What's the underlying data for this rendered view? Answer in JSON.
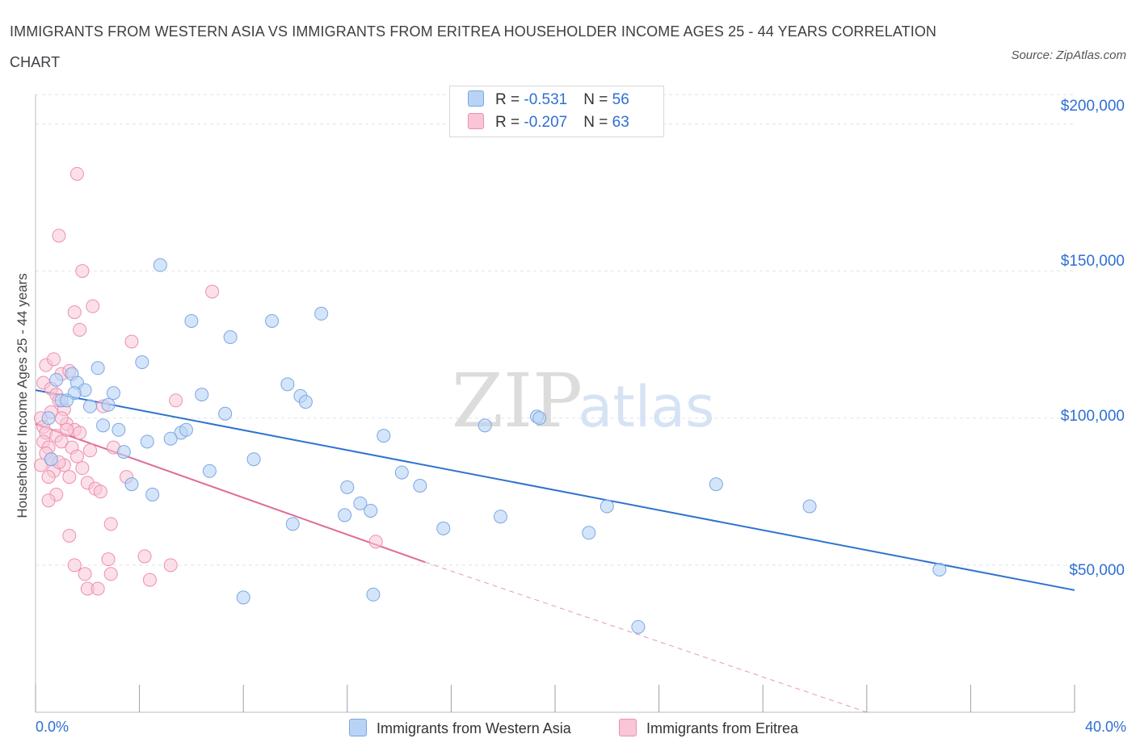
{
  "title": "IMMIGRANTS FROM WESTERN ASIA VS IMMIGRANTS FROM ERITREA HOUSEHOLDER INCOME AGES 25 - 44 YEARS CORRELATION CHART",
  "source": "Source: ZipAtlas.com",
  "watermark": {
    "zip": "ZIP",
    "atlas": "atlas"
  },
  "colors": {
    "blue_fill": "#b9d3f5",
    "blue_stroke": "#7aa7e6",
    "blue_line": "#2f72d0",
    "pink_fill": "#f8c6d6",
    "pink_stroke": "#ee8fb0",
    "pink_line": "#e06a98",
    "accent_text": "#2e6fd3"
  },
  "legend_top": [
    {
      "r_label": "R = ",
      "r_value": "-0.531",
      "n_label": "N = ",
      "n_value": "56"
    },
    {
      "r_label": "R = ",
      "r_value": "-0.207",
      "n_label": "N = ",
      "n_value": "63"
    }
  ],
  "chart_data": {
    "type": "scatter",
    "title": "IMMIGRANTS FROM WESTERN ASIA VS IMMIGRANTS FROM ERITREA HOUSEHOLDER INCOME AGES 25 - 44 YEARS CORRELATION CHART",
    "xlabel": "",
    "ylabel": "Householder Income Ages 25 - 44 years",
    "xlim": [
      0,
      40
    ],
    "ylim": [
      0,
      210000
    ],
    "x_tick_labels": [
      "0.0%",
      "40.0%"
    ],
    "y_ticks": [
      50000,
      100000,
      150000,
      200000
    ],
    "y_tick_labels": [
      "$50,000",
      "$100,000",
      "$150,000",
      "$200,000"
    ],
    "grid": "horizontal dashed",
    "legend": "top-center and bottom",
    "series": [
      {
        "name": "Immigrants from Western Asia",
        "r": -0.531,
        "n": 56,
        "trend": {
          "x0": 0,
          "y0": 109500,
          "x1": 40,
          "y1": 41500
        },
        "points": [
          [
            0.5,
            100000
          ],
          [
            0.8,
            113000
          ],
          [
            1.4,
            115000
          ],
          [
            1.0,
            106000
          ],
          [
            1.6,
            112000
          ],
          [
            1.9,
            109500
          ],
          [
            1.5,
            108500
          ],
          [
            2.4,
            117000
          ],
          [
            3.0,
            108500
          ],
          [
            3.4,
            88500
          ],
          [
            3.7,
            77500
          ],
          [
            2.1,
            104000
          ],
          [
            2.6,
            97500
          ],
          [
            4.1,
            119000
          ],
          [
            4.5,
            74000
          ],
          [
            5.6,
            95000
          ],
          [
            4.8,
            152000
          ],
          [
            6.0,
            133000
          ],
          [
            6.4,
            108000
          ],
          [
            7.3,
            101500
          ],
          [
            7.5,
            127500
          ],
          [
            8.0,
            39000
          ],
          [
            9.1,
            133000
          ],
          [
            9.7,
            111500
          ],
          [
            10.2,
            107500
          ],
          [
            10.4,
            105500
          ],
          [
            11.0,
            135500
          ],
          [
            12.0,
            76500
          ],
          [
            12.5,
            71000
          ],
          [
            12.9,
            68500
          ],
          [
            11.9,
            67000
          ],
          [
            13.4,
            94000
          ],
          [
            14.1,
            81500
          ],
          [
            14.8,
            77000
          ],
          [
            15.7,
            62500
          ],
          [
            17.3,
            97500
          ],
          [
            17.9,
            66500
          ],
          [
            19.3,
            100500
          ],
          [
            19.4,
            100000
          ],
          [
            21.3,
            61000
          ],
          [
            22.0,
            70000
          ],
          [
            23.2,
            29000
          ],
          [
            26.2,
            77500
          ],
          [
            29.8,
            70000
          ],
          [
            34.8,
            48500
          ],
          [
            5.2,
            93000
          ],
          [
            5.8,
            96000
          ],
          [
            6.7,
            82000
          ],
          [
            8.4,
            86000
          ],
          [
            9.9,
            64000
          ],
          [
            13.0,
            40000
          ],
          [
            4.3,
            92000
          ],
          [
            2.8,
            104500
          ],
          [
            3.2,
            96000
          ],
          [
            1.2,
            106000
          ],
          [
            0.6,
            86000
          ]
        ]
      },
      {
        "name": "Immigrants from Eritrea",
        "r": -0.207,
        "n": 63,
        "trend": {
          "x0": 0,
          "y0": 98000,
          "x1": 15,
          "y1": 51000,
          "dash_x1": 32,
          "dash_y1": 0
        },
        "points": [
          [
            0.2,
            100000
          ],
          [
            0.3,
            97000
          ],
          [
            0.4,
            95000
          ],
          [
            0.3,
            92000
          ],
          [
            0.5,
            90000
          ],
          [
            0.4,
            88000
          ],
          [
            0.6,
            86000
          ],
          [
            0.2,
            84000
          ],
          [
            0.7,
            82000
          ],
          [
            0.5,
            80000
          ],
          [
            0.3,
            112000
          ],
          [
            0.6,
            110000
          ],
          [
            0.8,
            108000
          ],
          [
            0.4,
            118000
          ],
          [
            1.0,
            115000
          ],
          [
            0.9,
            106000
          ],
          [
            1.1,
            103000
          ],
          [
            1.3,
            116000
          ],
          [
            0.7,
            120000
          ],
          [
            1.2,
            98000
          ],
          [
            1.5,
            96000
          ],
          [
            0.8,
            94000
          ],
          [
            1.0,
            92000
          ],
          [
            1.4,
            90000
          ],
          [
            1.6,
            87000
          ],
          [
            1.1,
            84000
          ],
          [
            1.8,
            83000
          ],
          [
            1.3,
            80000
          ],
          [
            2.0,
            78000
          ],
          [
            2.3,
            76000
          ],
          [
            0.8,
            74000
          ],
          [
            1.5,
            136000
          ],
          [
            1.7,
            130000
          ],
          [
            2.2,
            138000
          ],
          [
            1.8,
            150000
          ],
          [
            0.9,
            162000
          ],
          [
            1.6,
            183000
          ],
          [
            3.7,
            126000
          ],
          [
            2.6,
            104000
          ],
          [
            6.8,
            143000
          ],
          [
            5.4,
            106000
          ],
          [
            3.0,
            90000
          ],
          [
            3.5,
            80000
          ],
          [
            2.5,
            75000
          ],
          [
            2.9,
            64000
          ],
          [
            1.3,
            60000
          ],
          [
            1.5,
            50000
          ],
          [
            1.9,
            47000
          ],
          [
            2.0,
            42000
          ],
          [
            2.4,
            42000
          ],
          [
            2.8,
            52000
          ],
          [
            2.9,
            47000
          ],
          [
            4.2,
            53000
          ],
          [
            4.4,
            45000
          ],
          [
            5.2,
            50000
          ],
          [
            13.1,
            58000
          ],
          [
            1.0,
            100000
          ],
          [
            1.2,
            96000
          ],
          [
            0.6,
            102000
          ],
          [
            0.9,
            85000
          ],
          [
            1.7,
            95000
          ],
          [
            0.5,
            72000
          ],
          [
            2.1,
            89000
          ]
        ]
      }
    ]
  }
}
